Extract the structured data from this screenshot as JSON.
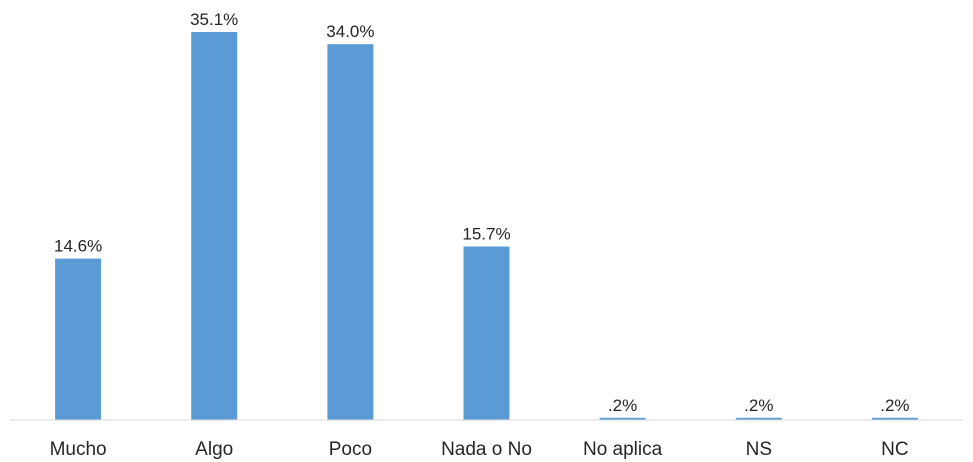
{
  "chart_data": {
    "type": "bar",
    "title": "",
    "xlabel": "",
    "ylabel": "",
    "categories": [
      "Mucho",
      "Algo",
      "Poco",
      "Nada o No",
      "No aplica",
      "NS",
      "NC"
    ],
    "values": [
      14.6,
      35.1,
      34.0,
      15.7,
      0.2,
      0.2,
      0.2
    ],
    "data_labels": [
      "14.6%",
      "35.1%",
      "34.0%",
      "15.7%",
      ".2%",
      ".2%",
      ".2%"
    ],
    "ylim": [
      0,
      35.1
    ],
    "grid": false,
    "legend": "none",
    "bar_color": "#5b9bd5"
  }
}
